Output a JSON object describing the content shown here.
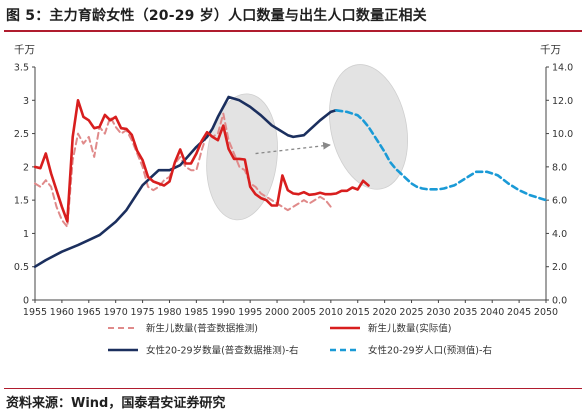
{
  "figure": {
    "title": "图 5：主力育龄女性（20-29 岁）人口数量与出生人口数量正相关",
    "source": "资料来源：Wind，国泰君安证券研究"
  },
  "chart_data": {
    "type": "line",
    "left_axis": {
      "unit": "千万",
      "min": 0,
      "max": 3.5,
      "ticks": [
        "0",
        "0.5",
        "1",
        "1.5",
        "2",
        "2.5",
        "3",
        "3.5"
      ]
    },
    "right_axis": {
      "unit": "千万",
      "min": 0,
      "max": 14,
      "ticks": [
        "0.0",
        "2.0",
        "4.0",
        "6.0",
        "8.0",
        "10.0",
        "12.0",
        "14.0"
      ]
    },
    "x_axis": {
      "min": 1955,
      "max": 2050,
      "ticks": [
        "1955",
        "1960",
        "1965",
        "1970",
        "1975",
        "1980",
        "1985",
        "1990",
        "1995",
        "2000",
        "2005",
        "2010",
        "2015",
        "2020",
        "2025",
        "2030",
        "2035",
        "2040",
        "2045",
        "2050"
      ]
    },
    "legend_position": "bottom",
    "series": [
      {
        "name": "新生儿数量(普查数据推测)",
        "axis": "left",
        "color": "#e08a8a",
        "dash": "6,4",
        "width": 2,
        "x": [
          1955,
          1956,
          1957,
          1958,
          1959,
          1960,
          1961,
          1962,
          1963,
          1964,
          1965,
          1966,
          1967,
          1968,
          1969,
          1970,
          1971,
          1972,
          1973,
          1974,
          1975,
          1976,
          1977,
          1978,
          1979,
          1980,
          1981,
          1982,
          1983,
          1984,
          1985,
          1986,
          1987,
          1988,
          1989,
          1990,
          1991,
          1992,
          1993,
          1994,
          1995,
          1996,
          1997,
          1998,
          1999,
          2000,
          2001,
          2002,
          2003,
          2004,
          2005,
          2006,
          2007,
          2008,
          2009,
          2010
        ],
        "y": [
          1.75,
          1.7,
          1.8,
          1.7,
          1.4,
          1.2,
          1.1,
          2.1,
          2.5,
          2.35,
          2.45,
          2.15,
          2.6,
          2.5,
          2.75,
          2.6,
          2.5,
          2.55,
          2.4,
          2.2,
          2.0,
          1.7,
          1.65,
          1.7,
          1.8,
          1.85,
          2.05,
          2.15,
          2.0,
          1.95,
          1.95,
          2.25,
          2.5,
          2.45,
          2.5,
          2.8,
          2.4,
          2.2,
          2.0,
          1.95,
          1.75,
          1.7,
          1.6,
          1.55,
          1.5,
          1.45,
          1.4,
          1.35,
          1.4,
          1.45,
          1.5,
          1.45,
          1.5,
          1.55,
          1.5,
          1.4
        ]
      },
      {
        "name": "新生儿数量(实际值)",
        "axis": "left",
        "color": "#d81e1e",
        "dash": "",
        "width": 2.6,
        "x": [
          1955,
          1956,
          1957,
          1958,
          1959,
          1960,
          1961,
          1962,
          1963,
          1964,
          1965,
          1966,
          1967,
          1968,
          1969,
          1970,
          1971,
          1972,
          1973,
          1974,
          1975,
          1976,
          1977,
          1978,
          1979,
          1980,
          1981,
          1982,
          1983,
          1984,
          1985,
          1986,
          1987,
          1988,
          1989,
          1990,
          1991,
          1992,
          1993,
          1994,
          1995,
          1996,
          1997,
          1998,
          1999,
          2000,
          2001,
          2002,
          2003,
          2004,
          2005,
          2006,
          2007,
          2008,
          2009,
          2010,
          2011,
          2012,
          2013,
          2014,
          2015,
          2016,
          2017
        ],
        "y": [
          2.0,
          1.98,
          2.2,
          1.9,
          1.65,
          1.4,
          1.18,
          2.45,
          3.0,
          2.75,
          2.7,
          2.58,
          2.6,
          2.78,
          2.7,
          2.75,
          2.58,
          2.57,
          2.48,
          2.24,
          2.1,
          1.85,
          1.78,
          1.75,
          1.72,
          1.78,
          2.07,
          2.26,
          2.05,
          2.05,
          2.2,
          2.39,
          2.52,
          2.45,
          2.4,
          2.62,
          2.27,
          2.12,
          2.12,
          2.11,
          1.7,
          1.59,
          1.53,
          1.5,
          1.42,
          1.42,
          1.87,
          1.65,
          1.6,
          1.59,
          1.62,
          1.58,
          1.59,
          1.61,
          1.59,
          1.59,
          1.6,
          1.64,
          1.64,
          1.69,
          1.66,
          1.79,
          1.72
        ]
      },
      {
        "name": "女性20-29岁数量(普查数据推测)-右",
        "axis": "right",
        "color": "#1b2f5e",
        "dash": "",
        "width": 2.6,
        "x": [
          1955,
          1957,
          1960,
          1963,
          1965,
          1967,
          1970,
          1972,
          1975,
          1977,
          1978,
          1980,
          1982,
          1985,
          1987,
          1988,
          1989,
          1990,
          1991,
          1992,
          1993,
          1995,
          1997,
          1999,
          2000,
          2002,
          2003,
          2005,
          2006,
          2008,
          2010,
          2011
        ],
        "y": [
          2.0,
          2.4,
          2.9,
          3.3,
          3.6,
          3.9,
          4.7,
          5.4,
          6.9,
          7.5,
          7.8,
          7.8,
          8.1,
          9.2,
          9.8,
          10.3,
          11.0,
          11.6,
          12.2,
          12.1,
          12.0,
          11.6,
          11.1,
          10.5,
          10.3,
          9.9,
          9.8,
          9.9,
          10.2,
          10.8,
          11.3,
          11.4
        ]
      },
      {
        "name": "女性20-29岁人口(预测值)-右",
        "axis": "right",
        "color": "#1a9ad6",
        "dash": "6,4",
        "width": 2.6,
        "x": [
          2011,
          2013,
          2015,
          2016,
          2017,
          2018,
          2019,
          2020,
          2021,
          2022,
          2023,
          2024,
          2025,
          2026,
          2027,
          2028,
          2029,
          2030,
          2031,
          2033,
          2035,
          2037,
          2039,
          2041,
          2043,
          2045,
          2047,
          2049,
          2050
        ],
        "y": [
          11.4,
          11.3,
          11.1,
          10.8,
          10.4,
          9.9,
          9.4,
          8.9,
          8.3,
          7.9,
          7.6,
          7.3,
          7.0,
          6.8,
          6.7,
          6.65,
          6.65,
          6.65,
          6.7,
          6.9,
          7.3,
          7.7,
          7.7,
          7.5,
          7.0,
          6.6,
          6.3,
          6.1,
          6.0
        ]
      }
    ],
    "annotations": {
      "ellipse_1": {
        "x_center": 1993.5,
        "y_left_center": 2.15,
        "x_radius": 6.5,
        "y_left_radius": 0.95,
        "color": "#d9d9d9"
      },
      "ellipse_2": {
        "x_center": 2017,
        "y_left_center": 2.6,
        "x_radius": 7,
        "y_left_radius": 0.95,
        "color": "#d9d9d9"
      },
      "arrow": {
        "x1": 1996,
        "y1": 2.2,
        "x2": 2010,
        "y2": 2.33,
        "color": "#888888"
      }
    }
  }
}
